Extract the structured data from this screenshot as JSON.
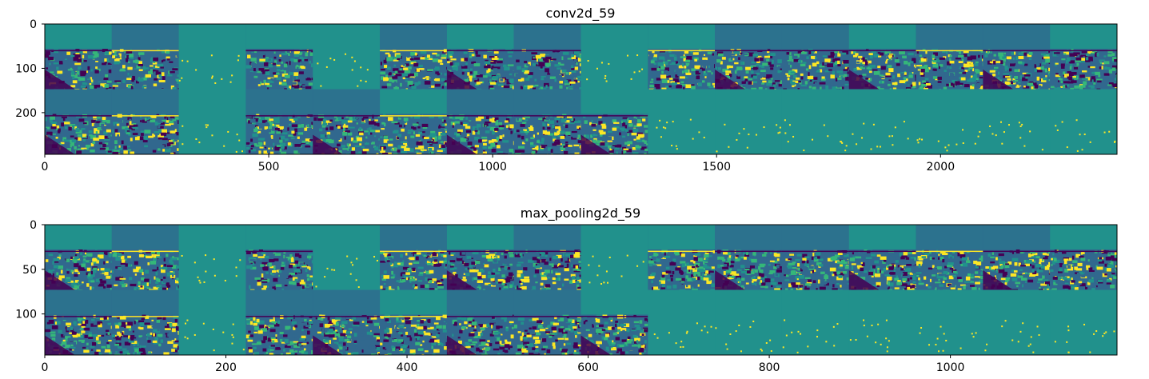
{
  "chart_data": [
    {
      "type": "heatmap",
      "title": "conv2d_59",
      "xlabel": "",
      "ylabel": "",
      "xlim": [
        0,
        2394
      ],
      "ylim": [
        0,
        294
      ],
      "x_ticks": [
        0,
        500,
        1000,
        1500,
        2000
      ],
      "y_ticks": [
        0,
        100,
        200
      ],
      "grid": false,
      "colormap": "viridis",
      "tile_grid": {
        "rows": 2,
        "cols": 16
      }
    },
    {
      "type": "heatmap",
      "title": "max_pooling2d_59",
      "xlabel": "",
      "ylabel": "",
      "xlim": [
        0,
        1184
      ],
      "ylim": [
        0,
        146
      ],
      "x_ticks": [
        0,
        200,
        400,
        600,
        800,
        1000
      ],
      "y_ticks": [
        0,
        50,
        100
      ],
      "grid": false,
      "colormap": "viridis",
      "tile_grid": {
        "rows": 2,
        "cols": 16
      }
    }
  ],
  "colors": {
    "viridis_dark": "#440154",
    "viridis_blue": "#31688e",
    "viridis_teal": "#21918c",
    "viridis_green": "#35b779",
    "viridis_yellow": "#fde725"
  }
}
